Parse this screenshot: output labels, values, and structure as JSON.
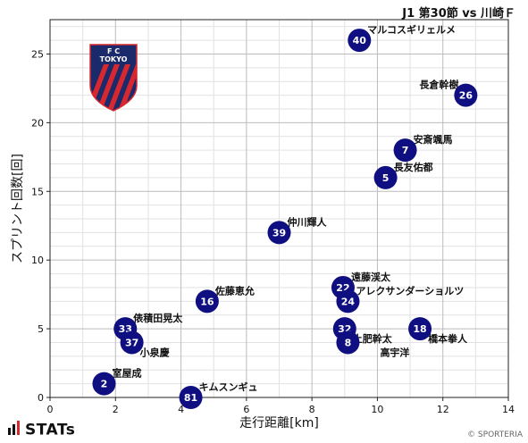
{
  "header": {
    "title": "J1 第30節 vs 川崎Ｆ"
  },
  "footer": {
    "brand": "STATs",
    "credit": "© SPORTERIA"
  },
  "logo": {
    "line1": "F    C",
    "line2": "TOKYO",
    "colors": [
      "#1b2a6b",
      "#d6282e"
    ]
  },
  "colors": {
    "marker": "#0f0f82",
    "marker_text": "#ffffff",
    "grid": "#bbbbbb",
    "minor_grid": "#e2e2e2"
  },
  "chart_data": {
    "type": "scatter",
    "xlabel": "走行距離[km]",
    "ylabel": "スプリント回数[回]",
    "xlim": [
      0,
      14
    ],
    "ylim": [
      0,
      27.5
    ],
    "xticks": [
      0,
      2,
      4,
      6,
      8,
      10,
      12,
      14
    ],
    "yticks": [
      0,
      5,
      10,
      15,
      20,
      25
    ],
    "grid": true,
    "points": [
      {
        "number": "40",
        "name": "マルコスギリェルメ",
        "x": 9.45,
        "y": 26,
        "label_pos": "right-up"
      },
      {
        "number": "26",
        "name": "長倉幹樹",
        "x": 12.7,
        "y": 22,
        "label_pos": "left-up"
      },
      {
        "number": "7",
        "name": "安斎颯馬",
        "x": 10.85,
        "y": 18,
        "label_pos": "right-up"
      },
      {
        "number": "5",
        "name": "長友佑都",
        "x": 10.25,
        "y": 16,
        "label_pos": "right-up"
      },
      {
        "number": "39",
        "name": "仲川輝人",
        "x": 7.0,
        "y": 12,
        "label_pos": "right-up"
      },
      {
        "number": "22",
        "name": "遠藤渓太",
        "x": 8.95,
        "y": 8,
        "label_pos": "right-up"
      },
      {
        "number": "24",
        "name": "アレクサンダーショルツ",
        "x": 9.1,
        "y": 7,
        "label_pos": "right-up"
      },
      {
        "number": "16",
        "name": "佐藤恵允",
        "x": 4.8,
        "y": 7,
        "label_pos": "right-up"
      },
      {
        "number": "33",
        "name": "俵積田晃太",
        "x": 2.3,
        "y": 5,
        "label_pos": "right-up"
      },
      {
        "number": "37",
        "name": "小泉慶",
        "x": 2.5,
        "y": 4,
        "label_pos": "right-down"
      },
      {
        "number": "32",
        "name": "土肥幹太",
        "x": 9.0,
        "y": 5,
        "label_pos": "right-down"
      },
      {
        "number": "18",
        "name": "橋本拳人",
        "x": 11.3,
        "y": 5,
        "label_pos": "right-down"
      },
      {
        "number": "8",
        "name": "高宇洋",
        "x": 9.1,
        "y": 4,
        "label_pos": "right-down-far"
      },
      {
        "number": "2",
        "name": "室屋成",
        "x": 1.65,
        "y": 1,
        "label_pos": "right-up"
      },
      {
        "number": "81",
        "name": "キムスンギュ",
        "x": 4.3,
        "y": 0,
        "label_pos": "right-up"
      }
    ]
  }
}
